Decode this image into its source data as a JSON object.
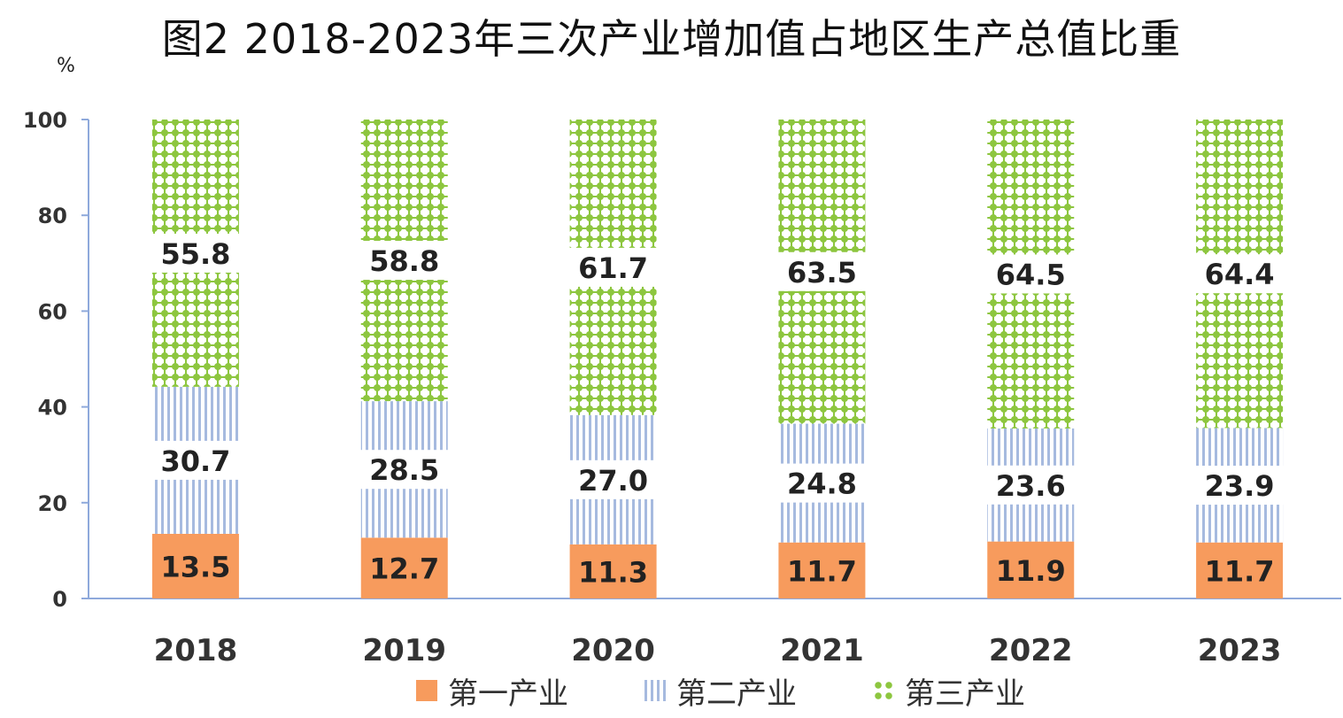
{
  "chart_data": {
    "type": "bar",
    "stacked": true,
    "title": "图2 2018-2023年三次产业增加值占地区生产总值比重",
    "unit": "%",
    "categories": [
      "2018",
      "2019",
      "2020",
      "2021",
      "2022",
      "2023"
    ],
    "series": [
      {
        "name": "第一产业",
        "values": [
          13.5,
          12.7,
          11.3,
          11.7,
          11.9,
          11.7
        ],
        "color": "#f79b5d",
        "pattern": "solid"
      },
      {
        "name": "第二产业",
        "values": [
          30.7,
          28.5,
          27.0,
          24.8,
          23.6,
          23.9
        ],
        "color": "#a6badf",
        "pattern": "vertical-lines"
      },
      {
        "name": "第三产业",
        "values": [
          55.8,
          58.8,
          61.7,
          63.5,
          64.5,
          64.4
        ],
        "color": "#8dc63f",
        "pattern": "dots"
      }
    ],
    "ylim": [
      0,
      100
    ],
    "yticks": [
      0,
      20,
      40,
      60,
      80,
      100
    ],
    "grid": false,
    "legend_position": "bottom"
  }
}
